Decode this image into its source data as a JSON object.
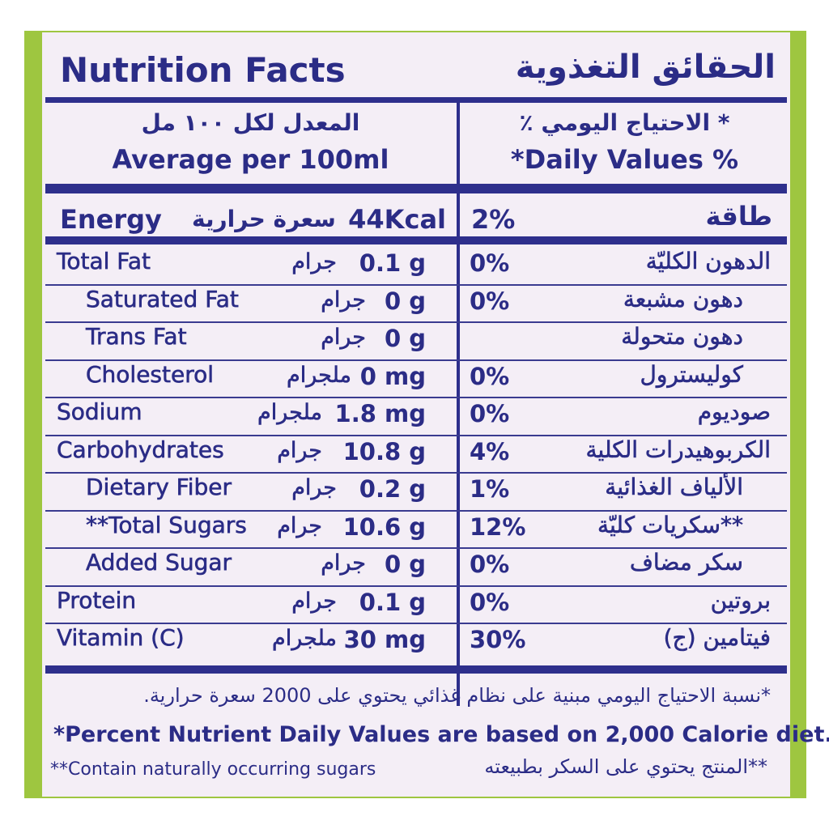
{
  "header": {
    "title_en": "Nutrition Facts",
    "title_ar": "الحقائق التغذوية"
  },
  "columns": {
    "left_ar": "المعدل لكل ١٠٠ مل",
    "left_en": "Average per 100ml",
    "right_ar": "* الاحتياج اليومي ٪",
    "right_en": "*Daily Values %"
  },
  "energy": {
    "name_en": "Energy",
    "unit_ar": "سعرة حرارية",
    "amount": "44Kcal",
    "dv": "2%",
    "name_ar": "طاقة"
  },
  "rows": [
    {
      "name_en": "Total Fat",
      "unit_ar": "جرام",
      "amount": "0.1 g",
      "dv": "0%",
      "name_ar": "الدهون الكليّة"
    },
    {
      "name_en": "Saturated Fat",
      "unit_ar": "جرام",
      "amount": "0 g",
      "dv": "0%",
      "name_ar": "دهون مشبعة"
    },
    {
      "name_en": "Trans Fat",
      "unit_ar": "جرام",
      "amount": "0 g",
      "dv": null,
      "name_ar": "دهون متحولة"
    },
    {
      "name_en": "Cholesterol",
      "unit_ar": "ملجرام",
      "amount": "0 mg",
      "dv": "0%",
      "name_ar": "كوليسترول"
    },
    {
      "name_en": "Sodium",
      "unit_ar": "ملجرام",
      "amount": "1.8 mg",
      "dv": "0%",
      "name_ar": "صوديوم"
    },
    {
      "name_en": "Carbohydrates",
      "unit_ar": "جرام",
      "amount": "10.8 g",
      "dv": "4%",
      "name_ar": "الكربوهيدرات الكلية"
    },
    {
      "name_en": "Dietary Fiber",
      "unit_ar": "جرام",
      "amount": "0.2 g",
      "dv": "1%",
      "name_ar": "الألياف الغذائية"
    },
    {
      "name_en": "**Total Sugars",
      "unit_ar": "جرام",
      "amount": "10.6 g",
      "dv": "12%",
      "name_ar": "**سكريات كليّة"
    },
    {
      "name_en": "Added Sugar",
      "unit_ar": "جرام",
      "amount": "0 g",
      "dv": "0%",
      "name_ar": "سكر مضاف"
    },
    {
      "name_en": "Protein",
      "unit_ar": "جرام",
      "amount": "0.1 g",
      "dv": "0%",
      "name_ar": "بروتين"
    },
    {
      "name_en": "Vitamin (C)",
      "unit_ar": "ملجرام",
      "amount": "30 mg",
      "dv": "30%",
      "name_ar": "فيتامين (ج)"
    }
  ],
  "footnotes": {
    "ar1": "*نسبة الاحتياج اليومي مبنية على نظام غذائي يحتوي على 2000 سعرة حرارية.",
    "en1": "*Percent Nutrient Daily Values are based on 2,000 Calorie diet.",
    "en2": "**Contain naturally occurring sugars",
    "ar2": "**المنتج يحتوي على السكر بطبيعته"
  }
}
